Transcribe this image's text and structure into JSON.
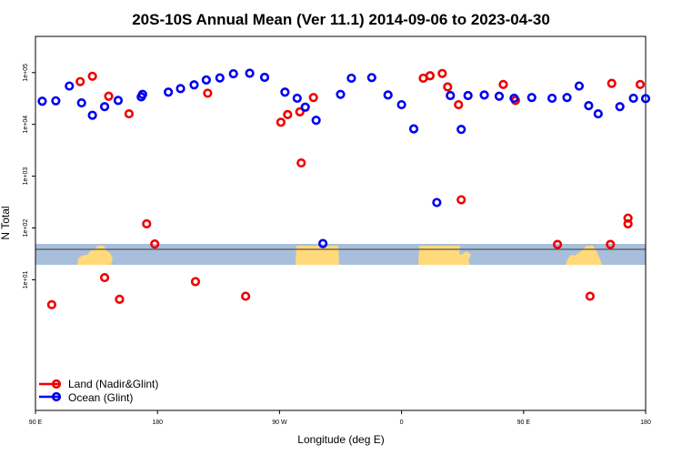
{
  "chart_data": {
    "type": "scatter",
    "title": "20S-10S Annual Mean (Ver 11.1)   2014-09-06 to 2023-04-30",
    "xlabel": "Longitude (deg E)",
    "ylabel": "N Total",
    "xlim": [
      90,
      540
    ],
    "ylog": true,
    "ylim": [
      0.03,
      500000
    ],
    "x_ticks": [
      {
        "value": 90,
        "label": "90 E"
      },
      {
        "value": 180,
        "label": "180"
      },
      {
        "value": 270,
        "label": "90 W"
      },
      {
        "value": 360,
        "label": "0"
      },
      {
        "value": 450,
        "label": "90 E"
      },
      {
        "value": 540,
        "label": "180"
      }
    ],
    "y_ticks": [
      {
        "value": 10,
        "label": "1e+01"
      },
      {
        "value": 100,
        "label": "1e+02"
      },
      {
        "value": 1000,
        "label": "1e+03"
      },
      {
        "value": 10000,
        "label": "1e+04"
      },
      {
        "value": 100000,
        "label": "1e+05"
      }
    ],
    "grid": false,
    "legend_position": "bottom-left",
    "map_strip": {
      "color_ocean": "#a8bfdc",
      "color_land": "#ffd97a",
      "line_color": "#555555"
    },
    "series": [
      {
        "name": "Land (Nadir&Glint)",
        "color": "#ee0000",
        "points": [
          [
            123,
            67000
          ],
          [
            132,
            85000
          ],
          [
            144,
            35000
          ],
          [
            159,
            16000
          ],
          [
            172,
            120
          ],
          [
            217,
            40000
          ],
          [
            178,
            49
          ],
          [
            208,
            9.2
          ],
          [
            141,
            11
          ],
          [
            152,
            4.2
          ],
          [
            271,
            11000
          ],
          [
            394,
            53000
          ],
          [
            402,
            24000
          ],
          [
            435,
            59000
          ],
          [
            444,
            29000
          ],
          [
            404,
            350
          ],
          [
            381,
            87000
          ],
          [
            390,
            96000
          ],
          [
            276,
            15500
          ],
          [
            285,
            17500
          ],
          [
            295,
            33000
          ],
          [
            376,
            78000
          ],
          [
            245,
            4.8
          ],
          [
            102,
            3.3
          ],
          [
            286,
            1800
          ],
          [
            499,
            4.8
          ],
          [
            514,
            48
          ],
          [
            527,
            155
          ],
          [
            536,
            59000
          ],
          [
            515,
            62000
          ],
          [
            527,
            120
          ],
          [
            475,
            48
          ]
        ]
      },
      {
        "name": "Ocean (Glint)",
        "color": "#0000ee",
        "points": [
          [
            95,
            28000
          ],
          [
            105,
            28500
          ],
          [
            115,
            55000
          ],
          [
            124,
            26000
          ],
          [
            132,
            15000
          ],
          [
            141,
            22000
          ],
          [
            151,
            29000
          ],
          [
            168,
            34000
          ],
          [
            169,
            38000
          ],
          [
            188,
            42000
          ],
          [
            197,
            49000
          ],
          [
            207,
            58000
          ],
          [
            216,
            72000
          ],
          [
            226,
            79000
          ],
          [
            236,
            95000
          ],
          [
            248,
            97000
          ],
          [
            259,
            81000
          ],
          [
            274,
            42000
          ],
          [
            283,
            32000
          ],
          [
            289,
            21500
          ],
          [
            297,
            12000
          ],
          [
            302,
            50
          ],
          [
            315,
            38000
          ],
          [
            323,
            78000
          ],
          [
            338,
            80000
          ],
          [
            350,
            37000
          ],
          [
            360,
            24000
          ],
          [
            369,
            8200
          ],
          [
            386,
            310
          ],
          [
            396,
            36000
          ],
          [
            404,
            8000
          ],
          [
            409,
            36000
          ],
          [
            421,
            37000
          ],
          [
            432,
            35000
          ],
          [
            443,
            32000
          ],
          [
            456,
            33000
          ],
          [
            471,
            32000
          ],
          [
            482,
            33000
          ],
          [
            491,
            55000
          ],
          [
            498,
            23000
          ],
          [
            505,
            16000
          ],
          [
            521,
            22000
          ],
          [
            531,
            32000
          ],
          [
            540,
            31500
          ]
        ]
      }
    ]
  }
}
